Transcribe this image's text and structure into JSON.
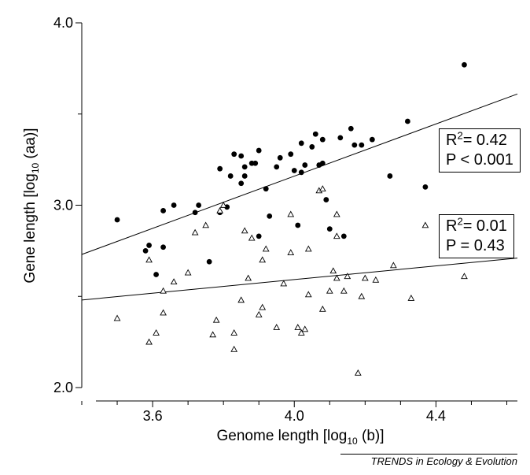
{
  "chart_data": {
    "type": "scatter",
    "xlabel": "Genome length [log10 (b)]",
    "ylabel": "Gene length [log10 (aa)]",
    "xlim": [
      3.4,
      4.63
    ],
    "ylim": [
      2.0,
      4.0
    ],
    "xticks": [
      "3.6",
      "4.0",
      "4.4"
    ],
    "yticks": [
      "2.0",
      "3.0",
      "4.0"
    ],
    "grid": false,
    "series": [
      {
        "marker": "filled-circle",
        "points": [
          [
            3.5,
            2.92
          ],
          [
            3.58,
            2.75
          ],
          [
            3.59,
            2.78
          ],
          [
            3.61,
            2.62
          ],
          [
            3.63,
            2.97
          ],
          [
            3.63,
            2.77
          ],
          [
            3.66,
            3.0
          ],
          [
            3.72,
            2.96
          ],
          [
            3.73,
            3.0
          ],
          [
            3.76,
            2.69
          ],
          [
            3.79,
            2.96
          ],
          [
            3.79,
            3.2
          ],
          [
            3.81,
            2.99
          ],
          [
            3.82,
            3.16
          ],
          [
            3.83,
            3.28
          ],
          [
            3.85,
            3.27
          ],
          [
            3.85,
            3.12
          ],
          [
            3.86,
            3.16
          ],
          [
            3.86,
            3.21
          ],
          [
            3.88,
            3.23
          ],
          [
            3.89,
            3.23
          ],
          [
            3.9,
            3.3
          ],
          [
            3.9,
            2.83
          ],
          [
            3.92,
            3.09
          ],
          [
            3.93,
            2.94
          ],
          [
            3.95,
            3.21
          ],
          [
            3.96,
            3.26
          ],
          [
            3.99,
            3.28
          ],
          [
            4.0,
            3.19
          ],
          [
            4.01,
            2.89
          ],
          [
            4.02,
            3.18
          ],
          [
            4.02,
            3.34
          ],
          [
            4.03,
            3.22
          ],
          [
            4.05,
            3.32
          ],
          [
            4.06,
            3.39
          ],
          [
            4.07,
            3.22
          ],
          [
            4.08,
            3.23
          ],
          [
            4.08,
            3.36
          ],
          [
            4.09,
            3.03
          ],
          [
            4.1,
            2.87
          ],
          [
            4.13,
            3.37
          ],
          [
            4.14,
            2.83
          ],
          [
            4.16,
            3.42
          ],
          [
            4.17,
            3.33
          ],
          [
            4.19,
            3.33
          ],
          [
            4.22,
            3.36
          ],
          [
            4.27,
            3.16
          ],
          [
            4.32,
            3.46
          ],
          [
            4.37,
            3.1
          ],
          [
            4.48,
            3.77
          ]
        ]
      },
      {
        "marker": "open-triangle",
        "points": [
          [
            3.5,
            2.38
          ],
          [
            3.59,
            2.25
          ],
          [
            3.59,
            2.7
          ],
          [
            3.61,
            2.3
          ],
          [
            3.63,
            2.53
          ],
          [
            3.63,
            2.41
          ],
          [
            3.66,
            2.58
          ],
          [
            3.7,
            2.63
          ],
          [
            3.72,
            2.85
          ],
          [
            3.75,
            2.89
          ],
          [
            3.77,
            2.29
          ],
          [
            3.78,
            2.37
          ],
          [
            3.79,
            2.97
          ],
          [
            3.8,
            3.0
          ],
          [
            3.83,
            2.21
          ],
          [
            3.83,
            2.3
          ],
          [
            3.85,
            2.48
          ],
          [
            3.86,
            2.86
          ],
          [
            3.87,
            2.6
          ],
          [
            3.88,
            2.82
          ],
          [
            3.9,
            2.4
          ],
          [
            3.91,
            2.44
          ],
          [
            3.91,
            2.7
          ],
          [
            3.92,
            2.76
          ],
          [
            3.95,
            2.33
          ],
          [
            3.97,
            2.57
          ],
          [
            3.99,
            2.95
          ],
          [
            3.99,
            2.74
          ],
          [
            4.01,
            2.33
          ],
          [
            4.02,
            2.3
          ],
          [
            4.03,
            2.32
          ],
          [
            4.04,
            2.51
          ],
          [
            4.04,
            2.76
          ],
          [
            4.07,
            3.08
          ],
          [
            4.08,
            3.09
          ],
          [
            4.08,
            2.43
          ],
          [
            4.1,
            2.53
          ],
          [
            4.11,
            2.64
          ],
          [
            4.12,
            2.95
          ],
          [
            4.12,
            2.83
          ],
          [
            4.12,
            2.6
          ],
          [
            4.14,
            2.53
          ],
          [
            4.15,
            2.61
          ],
          [
            4.18,
            2.08
          ],
          [
            4.19,
            2.5
          ],
          [
            4.2,
            2.6
          ],
          [
            4.23,
            2.59
          ],
          [
            4.28,
            2.67
          ],
          [
            4.33,
            2.49
          ],
          [
            4.37,
            2.89
          ],
          [
            4.48,
            2.61
          ]
        ]
      }
    ],
    "regression_lines": [
      {
        "x": [
          3.4,
          4.63
        ],
        "y": [
          2.73,
          3.61
        ]
      },
      {
        "x": [
          3.4,
          4.63
        ],
        "y": [
          2.48,
          2.71
        ]
      }
    ],
    "annotations": [
      {
        "r2_label": "R",
        "r2_sup": "2",
        "r2_value": "= 0.42",
        "p_text": "P < 0.001"
      },
      {
        "r2_label": "R",
        "r2_sup": "2",
        "r2_value": "= 0.01",
        "p_text": "P = 0.43"
      }
    ]
  },
  "labels": {
    "ylabel_main": "Gene length [log",
    "ylabel_sub": "10",
    "ylabel_tail": " (aa)]",
    "xlabel_main": "Genome length [log",
    "xlabel_sub": "10",
    "xlabel_tail": " (b)]"
  },
  "footer": "TRENDS in Ecology & Evolution"
}
